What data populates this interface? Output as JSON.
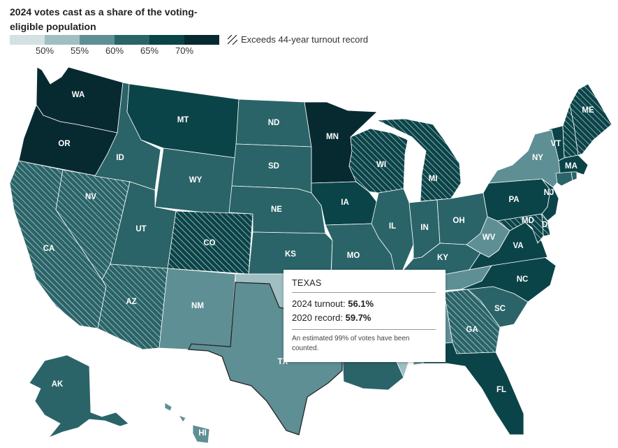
{
  "title": "2024 votes cast as a share of the voting-eligible population",
  "legend": {
    "bins": [
      {
        "color": "#d3e1e3"
      },
      {
        "color": "#9fbfc2"
      },
      {
        "color": "#5e8f94"
      },
      {
        "color": "#2a6468"
      },
      {
        "color": "#0b4448"
      },
      {
        "color": "#072a31"
      }
    ],
    "ticks": [
      "50%",
      "55%",
      "60%",
      "65%",
      "70%"
    ],
    "hatch_label": "Exceeds 44-year turnout record"
  },
  "colors": {
    "c50": "#d3e1e3",
    "c55": "#9fbfc2",
    "c60": "#5e8f94",
    "c65": "#2a6468",
    "c70": "#0b4448",
    "cmax": "#072a31",
    "hatch_line": "#cfe0e2"
  },
  "states": [
    {
      "abbr": "WA",
      "bin": "cmax",
      "record": false
    },
    {
      "abbr": "OR",
      "bin": "cmax",
      "record": false
    },
    {
      "abbr": "CA",
      "bin": "c65",
      "record": true
    },
    {
      "abbr": "NV",
      "bin": "c65",
      "record": true
    },
    {
      "abbr": "ID",
      "bin": "c65",
      "record": false
    },
    {
      "abbr": "MT",
      "bin": "c70",
      "record": false
    },
    {
      "abbr": "WY",
      "bin": "c65",
      "record": false
    },
    {
      "abbr": "UT",
      "bin": "c65",
      "record": false
    },
    {
      "abbr": "AZ",
      "bin": "c65",
      "record": true
    },
    {
      "abbr": "CO",
      "bin": "c70",
      "record": true
    },
    {
      "abbr": "NM",
      "bin": "c60",
      "record": false
    },
    {
      "abbr": "ND",
      "bin": "c65",
      "record": false
    },
    {
      "abbr": "SD",
      "bin": "c65",
      "record": false
    },
    {
      "abbr": "NE",
      "bin": "c65",
      "record": false
    },
    {
      "abbr": "KS",
      "bin": "c65",
      "record": false
    },
    {
      "abbr": "OK",
      "bin": "c55",
      "record": false
    },
    {
      "abbr": "TX",
      "bin": "c60",
      "record": false
    },
    {
      "abbr": "MN",
      "bin": "cmax",
      "record": false
    },
    {
      "abbr": "IA",
      "bin": "c70",
      "record": false
    },
    {
      "abbr": "MO",
      "bin": "c65",
      "record": false
    },
    {
      "abbr": "AR",
      "bin": "c55",
      "record": false
    },
    {
      "abbr": "LA",
      "bin": "c65",
      "record": false
    },
    {
      "abbr": "WI",
      "bin": "c70",
      "record": true
    },
    {
      "abbr": "IL",
      "bin": "c65",
      "record": false
    },
    {
      "abbr": "MI",
      "bin": "c70",
      "record": true
    },
    {
      "abbr": "IN",
      "bin": "c65",
      "record": false
    },
    {
      "abbr": "OH",
      "bin": "c65",
      "record": false
    },
    {
      "abbr": "KY",
      "bin": "c65",
      "record": false
    },
    {
      "abbr": "TN",
      "bin": "c60",
      "record": false
    },
    {
      "abbr": "MS",
      "bin": "c55",
      "record": false
    },
    {
      "abbr": "AL",
      "bin": "c60",
      "record": false
    },
    {
      "abbr": "GA",
      "bin": "c65",
      "record": true
    },
    {
      "abbr": "FL",
      "bin": "c70",
      "record": false
    },
    {
      "abbr": "SC",
      "bin": "c65",
      "record": false
    },
    {
      "abbr": "NC",
      "bin": "c70",
      "record": false
    },
    {
      "abbr": "VA",
      "bin": "c70",
      "record": false
    },
    {
      "abbr": "WV",
      "bin": "c60",
      "record": false
    },
    {
      "abbr": "PA",
      "bin": "c70",
      "record": false
    },
    {
      "abbr": "NY",
      "bin": "c60",
      "record": false
    },
    {
      "abbr": "NJ",
      "bin": "c70",
      "record": false
    },
    {
      "abbr": "DE",
      "bin": "c70",
      "record": true
    },
    {
      "abbr": "MD",
      "bin": "c70",
      "record": true
    },
    {
      "abbr": "VT",
      "bin": "c70",
      "record": false
    },
    {
      "abbr": "NH",
      "bin": "c70",
      "record": true
    },
    {
      "abbr": "ME",
      "bin": "c70",
      "record": true
    },
    {
      "abbr": "MA",
      "bin": "c70",
      "record": false
    },
    {
      "abbr": "CT",
      "bin": "c65",
      "record": false
    },
    {
      "abbr": "RI",
      "bin": "c65",
      "record": false
    },
    {
      "abbr": "AK",
      "bin": "c65",
      "record": false
    },
    {
      "abbr": "HI",
      "bin": "c60",
      "record": false
    }
  ],
  "labels": {
    "WA": "WA",
    "OR": "OR",
    "CA": "CA",
    "NV": "NV",
    "ID": "ID",
    "MT": "MT",
    "WY": "WY",
    "UT": "UT",
    "AZ": "AZ",
    "CO": "CO",
    "NM": "NM",
    "ND": "ND",
    "SD": "SD",
    "NE": "NE",
    "KS": "KS",
    "TX": "TX",
    "MN": "MN",
    "IA": "IA",
    "MO": "MO",
    "WI": "WI",
    "IL": "IL",
    "MI": "MI",
    "IN": "IN",
    "OH": "OH",
    "KY": "KY",
    "GA": "GA",
    "FL": "FL",
    "SC": "SC",
    "NC": "NC",
    "VA": "VA",
    "WV": "WV",
    "PA": "PA",
    "NY": "NY",
    "NJ": "NJ",
    "DE": "DE",
    "MD": "MD",
    "VT": "VT",
    "ME": "ME",
    "MA": "MA",
    "AK": "AK",
    "HI": "HI"
  },
  "tooltip": {
    "state": "TEXAS",
    "turnout_label": "2024 turnout:",
    "turnout_value": "56.1%",
    "record_label": "2020 record:",
    "record_value": "59.7%",
    "note": "An estimated 99% of votes have been counted."
  }
}
